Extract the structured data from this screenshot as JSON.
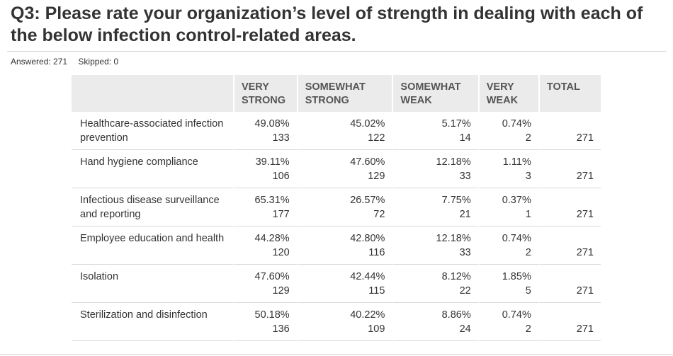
{
  "question": {
    "title": "Q3: Please rate your organization’s level of strength in dealing with each of the below infection control-related areas."
  },
  "stats": {
    "answered": "Answered: 271",
    "skipped": "Skipped: 0"
  },
  "table": {
    "headers": [
      "",
      "VERY STRONG",
      "SOMEWHAT STRONG",
      "SOMEWHAT WEAK",
      "VERY WEAK",
      "TOTAL"
    ],
    "rows": [
      {
        "label": "Healthcare-associated infection prevention",
        "cells": [
          {
            "pct": "49.08%",
            "n": "133"
          },
          {
            "pct": "45.02%",
            "n": "122"
          },
          {
            "pct": "5.17%",
            "n": "14"
          },
          {
            "pct": "0.74%",
            "n": "2"
          }
        ],
        "total": "271"
      },
      {
        "label": "Hand hygiene compliance",
        "cells": [
          {
            "pct": "39.11%",
            "n": "106"
          },
          {
            "pct": "47.60%",
            "n": "129"
          },
          {
            "pct": "12.18%",
            "n": "33"
          },
          {
            "pct": "1.11%",
            "n": "3"
          }
        ],
        "total": "271"
      },
      {
        "label": "Infectious disease surveillance and reporting",
        "cells": [
          {
            "pct": "65.31%",
            "n": "177"
          },
          {
            "pct": "26.57%",
            "n": "72"
          },
          {
            "pct": "7.75%",
            "n": "21"
          },
          {
            "pct": "0.37%",
            "n": "1"
          }
        ],
        "total": "271"
      },
      {
        "label": "Employee education and health",
        "cells": [
          {
            "pct": "44.28%",
            "n": "120"
          },
          {
            "pct": "42.80%",
            "n": "116"
          },
          {
            "pct": "12.18%",
            "n": "33"
          },
          {
            "pct": "0.74%",
            "n": "2"
          }
        ],
        "total": "271"
      },
      {
        "label": "Isolation",
        "cells": [
          {
            "pct": "47.60%",
            "n": "129"
          },
          {
            "pct": "42.44%",
            "n": "115"
          },
          {
            "pct": "8.12%",
            "n": "22"
          },
          {
            "pct": "1.85%",
            "n": "5"
          }
        ],
        "total": "271"
      },
      {
        "label": "Sterilization and disinfection",
        "cells": [
          {
            "pct": "50.18%",
            "n": "136"
          },
          {
            "pct": "40.22%",
            "n": "109"
          },
          {
            "pct": "8.86%",
            "n": "24"
          },
          {
            "pct": "0.74%",
            "n": "2"
          }
        ],
        "total": "271"
      }
    ]
  }
}
